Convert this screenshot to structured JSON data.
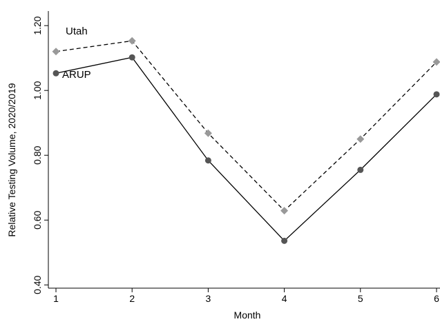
{
  "chart_data": {
    "type": "line",
    "title": "",
    "xlabel": "Month",
    "ylabel": "Relative Testing Volume, 2020/2019",
    "x": [
      1,
      2,
      3,
      4,
      5,
      6
    ],
    "xlim": [
      0.9,
      6
    ],
    "ylim": [
      0.39,
      1.245
    ],
    "xticks": [
      1,
      2,
      3,
      4,
      5,
      6
    ],
    "yticks": [
      0.4,
      0.6,
      0.8,
      1.0,
      1.2
    ],
    "ytick_labels": [
      "0.40",
      "0.60",
      "0.80",
      "1.00",
      "1.20"
    ],
    "grid": false,
    "legend": "none (series labeled directly on plot)",
    "series": [
      {
        "name": "Utah",
        "values": [
          1.12,
          1.153,
          0.868,
          0.629,
          0.85,
          1.088
        ],
        "line_style": "dashed",
        "marker": "diamond",
        "color": "#000000",
        "marker_color": "#999999"
      },
      {
        "name": "ARUP",
        "values": [
          1.053,
          1.102,
          0.784,
          0.536,
          0.755,
          0.988
        ],
        "line_style": "solid",
        "marker": "circle",
        "color": "#000000",
        "marker_color": "#555555"
      }
    ]
  }
}
